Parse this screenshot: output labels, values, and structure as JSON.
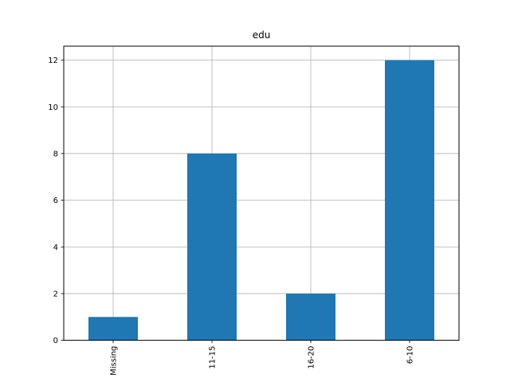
{
  "chart_data": {
    "type": "bar",
    "title": "edu",
    "xlabel": "",
    "ylabel": "",
    "categories": [
      "Missing",
      "11-15",
      "16-20",
      "6-10"
    ],
    "values": [
      1,
      8,
      2,
      12
    ],
    "ylim": [
      0,
      12.6
    ],
    "yticks": [
      0,
      2,
      4,
      6,
      8,
      10,
      12
    ],
    "grid": true,
    "bar_color": "#1f77b4",
    "grid_color": "#b0b0b0"
  }
}
